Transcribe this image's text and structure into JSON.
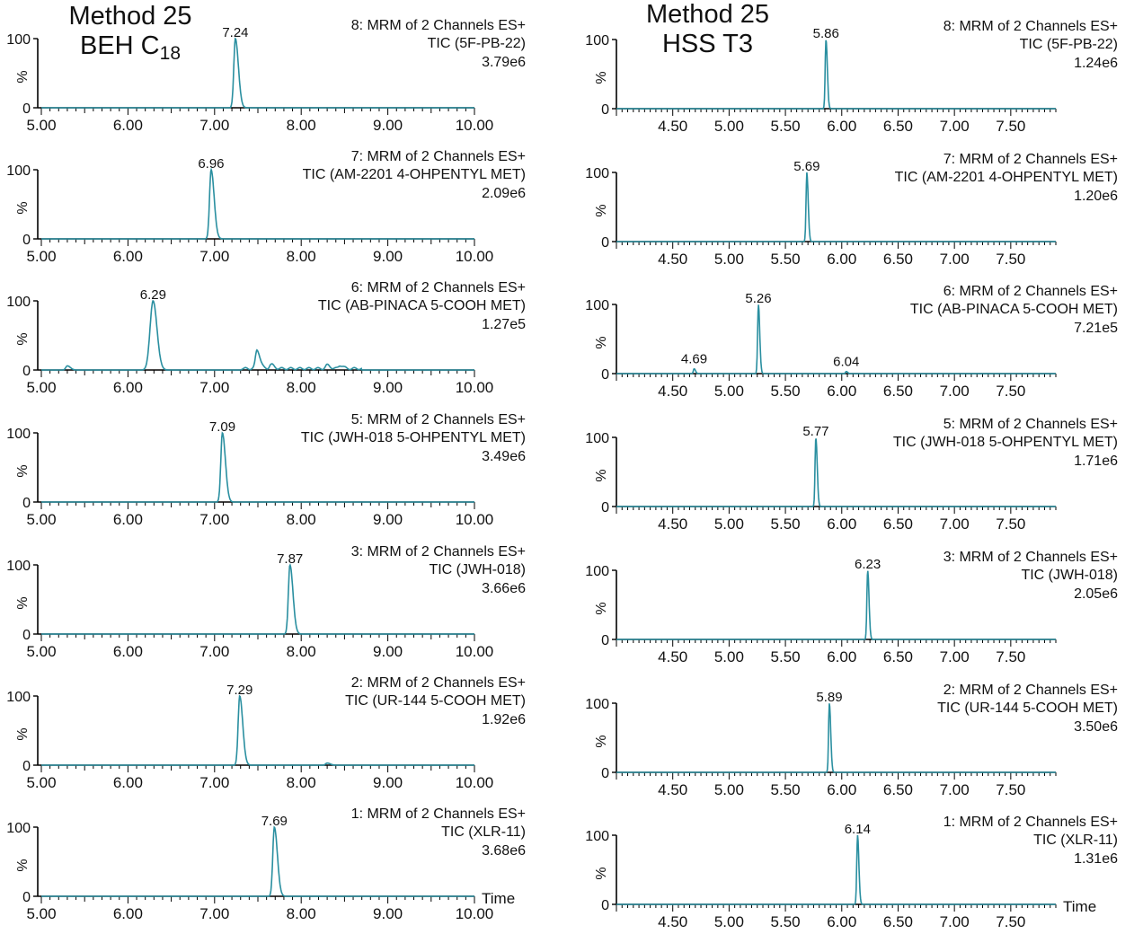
{
  "titles": {
    "left": {
      "line1": "Method 25",
      "line2_main": "BEH C",
      "line2_sub": "18"
    },
    "right": {
      "line1": "Method 25",
      "line2": "HSS T3"
    }
  },
  "colors": {
    "trace": "#2a8fa0",
    "axis": "#000000",
    "text": "#111111"
  },
  "chart_data": [
    {
      "type": "line",
      "column": "BEH C18",
      "xlabel": "Time",
      "xlim": [
        5.0,
        10.0
      ],
      "xticks": [
        "5.00",
        "6.00",
        "7.00",
        "8.00",
        "9.00",
        "10.00"
      ],
      "ylim": [
        0,
        100
      ],
      "yticks": [
        "0",
        "100"
      ],
      "ylabel": "%",
      "panels": [
        {
          "channel": "8: MRM of 2 Channels ES+",
          "compound": "TIC (5F-PB-22)",
          "intensity": "3.79e6",
          "peak_label": "7.24",
          "peaks": [
            {
              "x": 7.24,
              "y": 100
            }
          ]
        },
        {
          "channel": "7: MRM of 2 Channels ES+",
          "compound": "TIC (AM-2201 4-OHPENTYL MET)",
          "intensity": "2.09e6",
          "peak_label": "6.96",
          "peaks": [
            {
              "x": 6.96,
              "y": 100
            }
          ]
        },
        {
          "channel": "6: MRM of 2 Channels ES+",
          "compound": "TIC (AB-PINACA 5-COOH MET)",
          "intensity": "1.27e5",
          "peak_label": "6.29",
          "peaks": [
            {
              "x": 6.29,
              "y": 100
            },
            {
              "x": 5.3,
              "y": 6
            },
            {
              "x": 7.49,
              "y": 27
            },
            {
              "x": 7.65,
              "y": 6
            },
            {
              "x": 8.3,
              "y": 5
            },
            {
              "x": 8.45,
              "y": 5
            }
          ]
        },
        {
          "channel": "5: MRM of 2 Channels ES+",
          "compound": "TIC (JWH-018 5-OHPENTYL MET)",
          "intensity": "3.49e6",
          "peak_label": "7.09",
          "peaks": [
            {
              "x": 7.09,
              "y": 100
            }
          ]
        },
        {
          "channel": "3: MRM of 2 Channels ES+",
          "compound": "TIC (JWH-018)",
          "intensity": "3.66e6",
          "peak_label": "7.87",
          "peaks": [
            {
              "x": 7.87,
              "y": 100
            }
          ]
        },
        {
          "channel": "2: MRM of 2 Channels ES+",
          "compound": "TIC (UR-144 5-COOH MET)",
          "intensity": "1.92e6",
          "peak_label": "7.29",
          "peaks": [
            {
              "x": 7.29,
              "y": 100
            },
            {
              "x": 8.3,
              "y": 3
            }
          ]
        },
        {
          "channel": "1: MRM of 2 Channels ES+",
          "compound": "TIC (XLR-11)",
          "intensity": "3.68e6",
          "peak_label": "7.69",
          "peaks": [
            {
              "x": 7.69,
              "y": 100
            }
          ]
        }
      ]
    },
    {
      "type": "line",
      "column": "HSS T3",
      "xlabel": "Time",
      "xlim": [
        4.0,
        7.9
      ],
      "xticks": [
        "4.50",
        "5.00",
        "5.50",
        "6.00",
        "6.50",
        "7.00",
        "7.50"
      ],
      "ylim": [
        0,
        100
      ],
      "yticks": [
        "0",
        "100"
      ],
      "ylabel": "%",
      "panels": [
        {
          "channel": "8: MRM of 2 Channels ES+",
          "compound": "TIC (5F-PB-22)",
          "intensity": "1.24e6",
          "peak_label": "5.86",
          "peaks": [
            {
              "x": 5.86,
              "y": 100
            }
          ]
        },
        {
          "channel": "7: MRM of 2 Channels ES+",
          "compound": "TIC (AM-2201 4-OHPENTYL MET)",
          "intensity": "1.20e6",
          "peak_label": "5.69",
          "peaks": [
            {
              "x": 5.69,
              "y": 100
            }
          ]
        },
        {
          "channel": "6: MRM of 2 Channels ES+",
          "compound": "TIC (AB-PINACA 5-COOH MET)",
          "intensity": "7.21e5",
          "peak_label": "5.26",
          "peaks": [
            {
              "x": 5.26,
              "y": 100
            },
            {
              "x": 4.69,
              "y": 7,
              "label": "4.69"
            },
            {
              "x": 6.04,
              "y": 3,
              "label": "6.04"
            }
          ]
        },
        {
          "channel": "5: MRM of 2 Channels ES+",
          "compound": "TIC (JWH-018 5-OHPENTYL MET)",
          "intensity": "1.71e6",
          "peak_label": "5.77",
          "peaks": [
            {
              "x": 5.77,
              "y": 100
            }
          ]
        },
        {
          "channel": "3: MRM of 2 Channels ES+",
          "compound": "TIC (JWH-018)",
          "intensity": "2.05e6",
          "peak_label": "6.23",
          "peaks": [
            {
              "x": 6.23,
              "y": 100
            }
          ]
        },
        {
          "channel": "2: MRM of 2 Channels ES+",
          "compound": "TIC (UR-144 5-COOH MET)",
          "intensity": "3.50e6",
          "peak_label": "5.89",
          "peaks": [
            {
              "x": 5.89,
              "y": 100
            }
          ]
        },
        {
          "channel": "1: MRM of 2 Channels ES+",
          "compound": "TIC (XLR-11)",
          "intensity": "1.31e6",
          "peak_label": "6.14",
          "peaks": [
            {
              "x": 6.14,
              "y": 100
            }
          ]
        }
      ]
    }
  ]
}
